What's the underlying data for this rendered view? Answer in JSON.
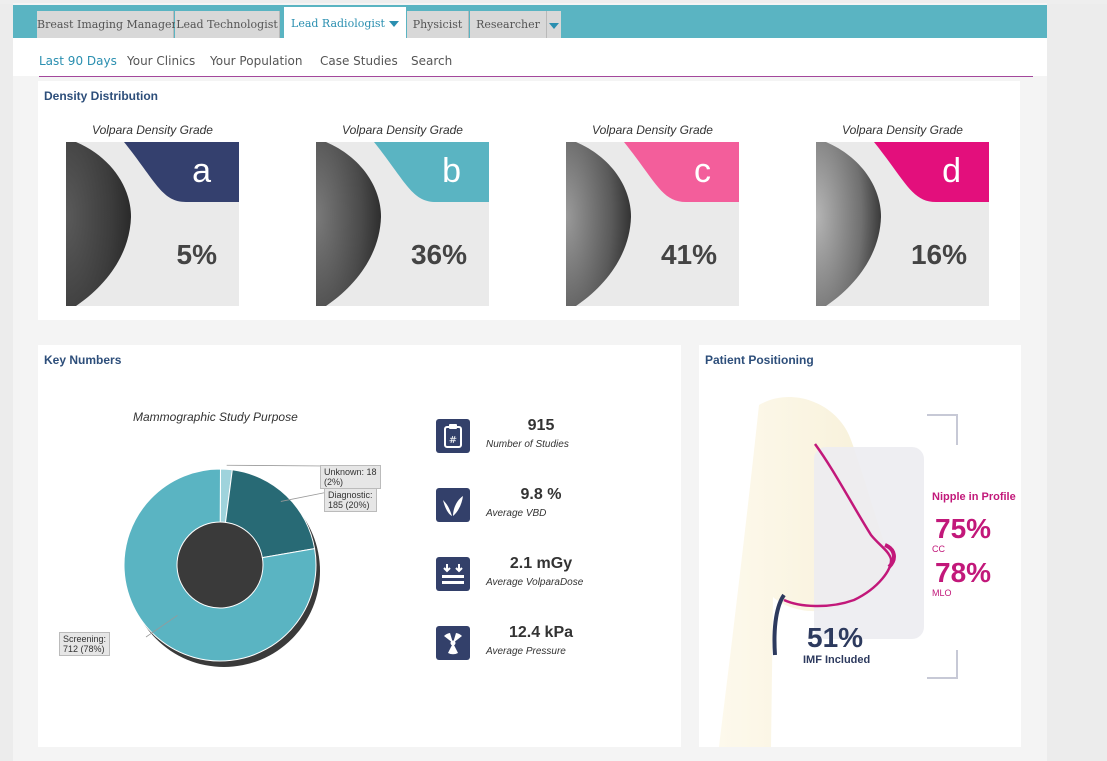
{
  "roles": {
    "tabs": [
      "Breast Imaging Manager",
      "Lead Technologist",
      "Lead Radiologist",
      "Physicist",
      "Researcher"
    ],
    "active": "Lead Radiologist"
  },
  "subnav": {
    "items": [
      "Last 90 Days",
      "Your Clinics",
      "Your Population",
      "Case Studies",
      "Search"
    ],
    "active": "Last 90 Days"
  },
  "density": {
    "title": "Density Distribution",
    "grades": [
      {
        "caption": "Volpara Density Grade",
        "letter": "a",
        "percent": "5%",
        "color": "#34406e"
      },
      {
        "caption": "Volpara Density Grade",
        "letter": "b",
        "percent": "36%",
        "color": "#5ab4c2"
      },
      {
        "caption": "Volpara Density Grade",
        "letter": "c",
        "percent": "41%",
        "color": "#f35e9b"
      },
      {
        "caption": "Volpara Density Grade",
        "letter": "d",
        "percent": "16%",
        "color": "#e30f7c"
      }
    ]
  },
  "key_numbers": {
    "title": "Key Numbers",
    "chart_title": "Mammographic Study Purpose",
    "stats": [
      {
        "icon": "clipboard-icon",
        "value": "915",
        "label": "Number of Studies"
      },
      {
        "icon": "volpara-logo-icon",
        "value": "9.8 %",
        "label": "Average VBD"
      },
      {
        "icon": "dose-icon",
        "value": "2.1 mGy",
        "label": "Average VolparaDose"
      },
      {
        "icon": "radiation-icon",
        "value": "12.4 kPa",
        "label": "Average Pressure"
      }
    ]
  },
  "chart_data": {
    "type": "pie",
    "title": "Mammographic Study Purpose",
    "donut": true,
    "slices": [
      {
        "label": "Unknown",
        "count": 18,
        "percent": 2,
        "label_text": "Unknown: 18",
        "label_text2": "(2%)",
        "color": "#9fd3dc"
      },
      {
        "label": "Diagnostic",
        "count": 185,
        "percent": 20,
        "label_text": "Diagnostic:",
        "label_text2": "185 (20%)",
        "color": "#286a75"
      },
      {
        "label": "Screening",
        "count": 712,
        "percent": 78,
        "label_text": "Screening:",
        "label_text2": "712 (78%)",
        "color": "#5ab4c2"
      }
    ]
  },
  "positioning": {
    "title": "Patient Positioning",
    "nipple_heading": "Nipple in Profile",
    "cc_value": "75%",
    "cc_label": "CC",
    "mlo_value": "78%",
    "mlo_label": "MLO",
    "imf_value": "51%",
    "imf_label": "IMF Included"
  }
}
